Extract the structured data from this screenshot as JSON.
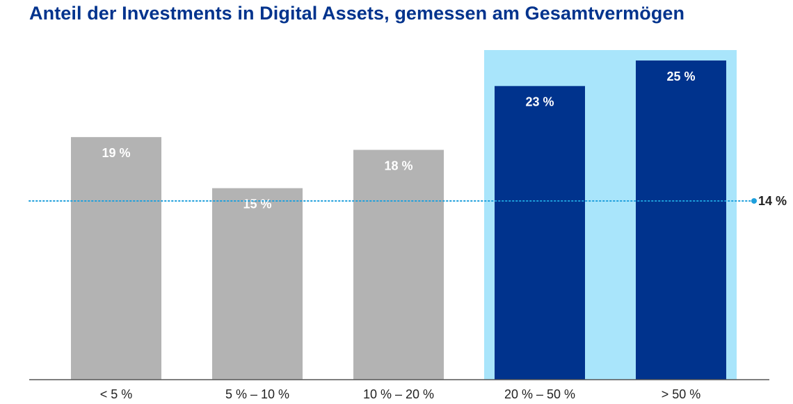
{
  "chart_data": {
    "type": "bar",
    "title": "Anteil der Investments in Digital Assets, gemessen am Gesamtvermögen",
    "xlabel": "",
    "ylabel": "",
    "categories": [
      "< 5 %",
      "5 % – 10 %",
      "10 % – 20 %",
      "20 % – 50 %",
      "> 50 %"
    ],
    "values": [
      19,
      15,
      18,
      23,
      25
    ],
    "value_labels": [
      "19 %",
      "15 %",
      "18 %",
      "23 %",
      "25 %"
    ],
    "highlighted": [
      false,
      false,
      false,
      true,
      true
    ],
    "ylim": [
      0,
      25
    ],
    "grid": false,
    "reference_line": {
      "value": 14,
      "label": "14 %"
    },
    "colors": {
      "bar": "#b3b3b3",
      "bar_highlight": "#00338d",
      "highlight_background": "#a9e5fb",
      "reference_line": "#1e9fdc",
      "title": "#00338d",
      "axis": "#555555"
    }
  }
}
